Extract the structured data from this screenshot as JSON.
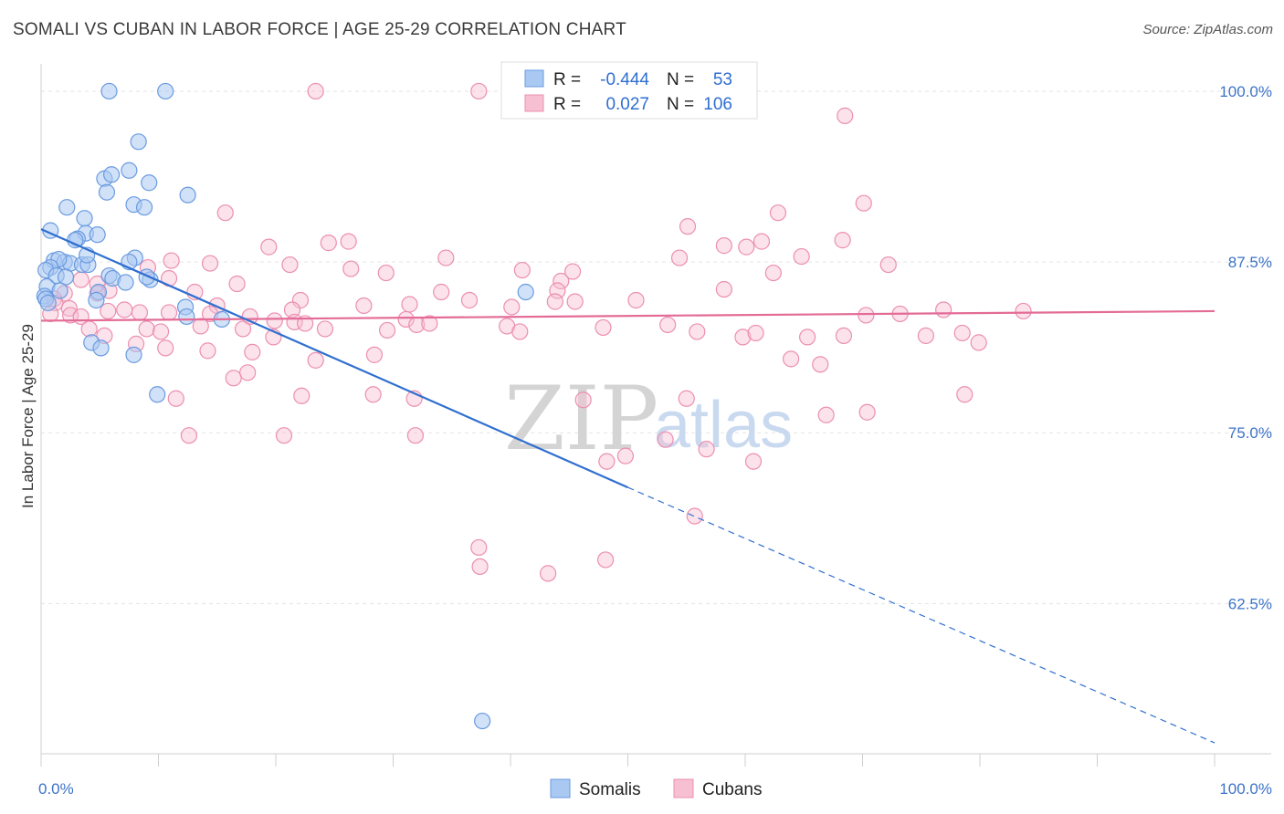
{
  "title": "SOMALI VS CUBAN IN LABOR FORCE | AGE 25-29 CORRELATION CHART",
  "source": "Source: ZipAtlas.com",
  "watermark": {
    "zip": "ZIP",
    "atlas": "atlas"
  },
  "chart_data": {
    "type": "scatter",
    "title": "SOMALI VS CUBAN IN LABOR FORCE | AGE 25-29 CORRELATION CHART",
    "xlabel": "",
    "ylabel": "In Labor Force | Age 25-29",
    "xlim": [
      0,
      100
    ],
    "ylim": [
      51.5,
      102
    ],
    "x_tick_labels": [
      "0.0%",
      "100.0%"
    ],
    "y_ticks": [
      62.5,
      75.0,
      87.5,
      100.0
    ],
    "y_tick_labels": [
      "62.5%",
      "75.0%",
      "87.5%",
      "100.0%"
    ],
    "grid": true,
    "legend_placement": "top-center",
    "colors": {
      "somali_fill": "#a9c8f2",
      "somali_stroke": "#6a9be0",
      "somali_line": "#2f6fd0",
      "cuban_fill": "#f7bfd2",
      "cuban_stroke": "#ec8fb0",
      "cuban_line": "#e36b96"
    },
    "legend": {
      "rows": [
        {
          "r_label": "R =",
          "r_value": "-0.444",
          "n_label": "N =",
          "n_value": "53"
        },
        {
          "r_label": "R =",
          "r_value": "0.027",
          "n_label": "N =",
          "n_value": "106"
        }
      ]
    },
    "series": [
      {
        "name": "Somalis",
        "trend": {
          "x0": 0,
          "y0": 89.9,
          "x1": 50,
          "y1": 71.0,
          "dash_to_x": 100,
          "dash_to_y": 52.3
        },
        "points": [
          [
            5.8,
            100.0
          ],
          [
            10.6,
            100.0
          ],
          [
            8.3,
            96.3
          ],
          [
            7.5,
            94.2
          ],
          [
            5.4,
            93.6
          ],
          [
            6.0,
            93.9
          ],
          [
            9.2,
            93.3
          ],
          [
            5.6,
            92.6
          ],
          [
            12.5,
            92.4
          ],
          [
            7.9,
            91.7
          ],
          [
            2.2,
            91.5
          ],
          [
            8.8,
            91.5
          ],
          [
            3.7,
            90.7
          ],
          [
            0.8,
            89.8
          ],
          [
            3.8,
            89.6
          ],
          [
            4.8,
            89.5
          ],
          [
            3.1,
            89.2
          ],
          [
            2.9,
            89.1
          ],
          [
            1.1,
            87.6
          ],
          [
            2.0,
            87.5
          ],
          [
            2.5,
            87.4
          ],
          [
            1.5,
            87.7
          ],
          [
            3.5,
            87.3
          ],
          [
            4.0,
            87.3
          ],
          [
            8.0,
            87.8
          ],
          [
            3.9,
            88.0
          ],
          [
            0.8,
            87.1
          ],
          [
            7.5,
            87.5
          ],
          [
            0.4,
            86.9
          ],
          [
            1.3,
            86.5
          ],
          [
            2.1,
            86.4
          ],
          [
            5.8,
            86.5
          ],
          [
            9.3,
            86.2
          ],
          [
            6.1,
            86.3
          ],
          [
            7.2,
            86.0
          ],
          [
            9.0,
            86.4
          ],
          [
            0.5,
            85.7
          ],
          [
            1.6,
            85.4
          ],
          [
            4.9,
            85.3
          ],
          [
            0.3,
            85.0
          ],
          [
            0.4,
            84.8
          ],
          [
            0.6,
            84.5
          ],
          [
            4.7,
            84.7
          ],
          [
            12.3,
            84.2
          ],
          [
            12.4,
            83.5
          ],
          [
            15.4,
            83.3
          ],
          [
            4.3,
            81.6
          ],
          [
            5.1,
            81.2
          ],
          [
            7.9,
            80.7
          ],
          [
            9.9,
            77.8
          ],
          [
            41.3,
            85.3
          ],
          [
            37.6,
            53.9
          ]
        ]
      },
      {
        "name": "Cubans",
        "trend": {
          "x0": 0,
          "y0": 83.2,
          "x1": 100,
          "y1": 83.9
        },
        "points": [
          [
            23.4,
            100.0
          ],
          [
            37.3,
            100.0
          ],
          [
            49.5,
            100.0
          ],
          [
            68.5,
            98.2
          ],
          [
            15.7,
            91.1
          ],
          [
            70.1,
            91.8
          ],
          [
            62.8,
            91.1
          ],
          [
            55.1,
            90.1
          ],
          [
            68.3,
            89.1
          ],
          [
            26.2,
            89.0
          ],
          [
            24.5,
            88.9
          ],
          [
            19.4,
            88.6
          ],
          [
            58.2,
            88.7
          ],
          [
            60.1,
            88.6
          ],
          [
            61.4,
            89.0
          ],
          [
            54.4,
            87.8
          ],
          [
            64.8,
            87.9
          ],
          [
            11.1,
            87.6
          ],
          [
            14.4,
            87.4
          ],
          [
            21.2,
            87.3
          ],
          [
            34.5,
            87.8
          ],
          [
            72.2,
            87.3
          ],
          [
            9.1,
            87.1
          ],
          [
            26.4,
            87.0
          ],
          [
            29.4,
            86.7
          ],
          [
            41.0,
            86.9
          ],
          [
            45.3,
            86.8
          ],
          [
            3.4,
            86.2
          ],
          [
            10.9,
            86.3
          ],
          [
            62.4,
            86.7
          ],
          [
            44.3,
            86.1
          ],
          [
            4.8,
            85.9
          ],
          [
            16.7,
            85.9
          ],
          [
            13.1,
            85.3
          ],
          [
            5.8,
            85.4
          ],
          [
            44.0,
            85.4
          ],
          [
            58.2,
            85.5
          ],
          [
            34.1,
            85.3
          ],
          [
            2.0,
            85.2
          ],
          [
            4.8,
            85.2
          ],
          [
            1.1,
            84.8
          ],
          [
            1.2,
            84.5
          ],
          [
            22.1,
            84.7
          ],
          [
            27.5,
            84.3
          ],
          [
            31.4,
            84.4
          ],
          [
            43.8,
            84.6
          ],
          [
            45.5,
            84.6
          ],
          [
            50.7,
            84.7
          ],
          [
            36.5,
            84.7
          ],
          [
            40.1,
            84.2
          ],
          [
            2.4,
            84.1
          ],
          [
            5.7,
            83.9
          ],
          [
            7.1,
            84.0
          ],
          [
            15.0,
            84.3
          ],
          [
            21.4,
            84.0
          ],
          [
            31.1,
            83.3
          ],
          [
            0.8,
            83.7
          ],
          [
            2.5,
            83.6
          ],
          [
            3.4,
            83.5
          ],
          [
            8.4,
            83.8
          ],
          [
            10.9,
            83.8
          ],
          [
            14.4,
            83.7
          ],
          [
            17.8,
            83.5
          ],
          [
            19.9,
            83.2
          ],
          [
            21.6,
            83.1
          ],
          [
            22.5,
            83.0
          ],
          [
            32.0,
            82.9
          ],
          [
            33.1,
            83.0
          ],
          [
            39.7,
            82.8
          ],
          [
            55.9,
            82.4
          ],
          [
            59.8,
            82.0
          ],
          [
            65.3,
            82.0
          ],
          [
            70.3,
            83.6
          ],
          [
            73.2,
            83.7
          ],
          [
            76.9,
            84.0
          ],
          [
            83.7,
            83.9
          ],
          [
            68.4,
            82.1
          ],
          [
            75.4,
            82.1
          ],
          [
            78.5,
            82.3
          ],
          [
            4.1,
            82.6
          ],
          [
            5.4,
            82.1
          ],
          [
            9.0,
            82.6
          ],
          [
            10.2,
            82.4
          ],
          [
            13.6,
            82.8
          ],
          [
            17.2,
            82.6
          ],
          [
            19.8,
            82.0
          ],
          [
            24.2,
            82.6
          ],
          [
            29.5,
            82.5
          ],
          [
            40.8,
            82.4
          ],
          [
            47.9,
            82.7
          ],
          [
            53.4,
            82.9
          ],
          [
            60.9,
            82.3
          ],
          [
            8.1,
            81.5
          ],
          [
            10.6,
            81.2
          ],
          [
            14.2,
            81.0
          ],
          [
            18.0,
            80.9
          ],
          [
            23.4,
            80.3
          ],
          [
            28.4,
            80.7
          ],
          [
            63.9,
            80.4
          ],
          [
            66.4,
            80.0
          ],
          [
            79.9,
            81.6
          ],
          [
            11.5,
            77.5
          ],
          [
            16.4,
            79.0
          ],
          [
            17.6,
            79.4
          ],
          [
            22.2,
            77.7
          ],
          [
            28.3,
            77.8
          ],
          [
            31.8,
            77.5
          ],
          [
            46.2,
            77.4
          ],
          [
            55.0,
            77.5
          ],
          [
            66.9,
            76.3
          ],
          [
            70.4,
            76.5
          ],
          [
            78.7,
            77.8
          ],
          [
            12.6,
            74.8
          ],
          [
            20.7,
            74.8
          ],
          [
            31.9,
            74.8
          ],
          [
            49.8,
            73.3
          ],
          [
            53.2,
            74.5
          ],
          [
            56.7,
            73.8
          ],
          [
            48.2,
            72.9
          ],
          [
            60.7,
            72.9
          ],
          [
            55.7,
            68.9
          ],
          [
            37.4,
            65.2
          ],
          [
            37.3,
            66.6
          ],
          [
            43.2,
            64.7
          ],
          [
            48.1,
            65.7
          ]
        ]
      }
    ]
  },
  "bottom_legend": [
    {
      "label": "Somalis"
    },
    {
      "label": "Cubans"
    }
  ]
}
